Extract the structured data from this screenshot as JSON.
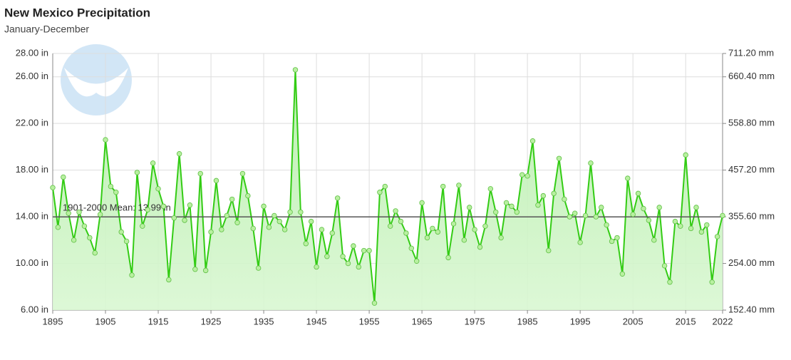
{
  "chart_data": {
    "type": "line",
    "title": "New Mexico Precipitation",
    "subtitle": "January-December",
    "x": [
      1895,
      1896,
      1897,
      1898,
      1899,
      1900,
      1901,
      1902,
      1903,
      1904,
      1905,
      1906,
      1907,
      1908,
      1909,
      1910,
      1911,
      1912,
      1913,
      1914,
      1915,
      1916,
      1917,
      1918,
      1919,
      1920,
      1921,
      1922,
      1923,
      1924,
      1925,
      1926,
      1927,
      1928,
      1929,
      1930,
      1931,
      1932,
      1933,
      1934,
      1935,
      1936,
      1937,
      1938,
      1939,
      1940,
      1941,
      1942,
      1943,
      1944,
      1945,
      1946,
      1947,
      1948,
      1949,
      1950,
      1951,
      1952,
      1953,
      1954,
      1955,
      1956,
      1957,
      1958,
      1959,
      1960,
      1961,
      1962,
      1963,
      1964,
      1965,
      1966,
      1967,
      1968,
      1969,
      1970,
      1971,
      1972,
      1973,
      1974,
      1975,
      1976,
      1977,
      1978,
      1979,
      1980,
      1981,
      1982,
      1983,
      1984,
      1985,
      1986,
      1987,
      1988,
      1989,
      1990,
      1991,
      1992,
      1993,
      1994,
      1995,
      1996,
      1997,
      1998,
      1999,
      2000,
      2001,
      2002,
      2003,
      2004,
      2005,
      2006,
      2007,
      2008,
      2009,
      2010,
      2011,
      2012,
      2013,
      2014,
      2015,
      2016,
      2017,
      2018,
      2019,
      2020,
      2021,
      2022
    ],
    "values": [
      16.5,
      13.1,
      17.4,
      14.3,
      12.0,
      14.4,
      13.2,
      12.2,
      10.9,
      14.2,
      20.6,
      16.6,
      16.1,
      12.7,
      11.9,
      9.0,
      17.8,
      13.2,
      14.6,
      18.6,
      16.4,
      14.9,
      8.6,
      13.9,
      19.4,
      13.7,
      15.0,
      9.5,
      17.7,
      9.4,
      12.7,
      17.1,
      12.9,
      14.1,
      15.5,
      13.5,
      17.7,
      15.8,
      13.0,
      9.6,
      14.9,
      13.1,
      14.1,
      13.6,
      12.9,
      14.4,
      26.6,
      14.4,
      11.7,
      13.6,
      9.7,
      12.9,
      10.6,
      12.6,
      15.6,
      10.6,
      10.0,
      11.5,
      9.7,
      11.1,
      11.1,
      6.6,
      16.1,
      16.6,
      13.2,
      14.5,
      13.6,
      12.6,
      11.3,
      10.2,
      15.2,
      12.2,
      13.0,
      12.7,
      16.6,
      10.5,
      13.4,
      16.7,
      12.0,
      14.8,
      12.9,
      11.4,
      13.2,
      16.4,
      14.4,
      12.2,
      15.2,
      14.9,
      14.4,
      17.6,
      17.5,
      20.5,
      15.0,
      15.8,
      11.1,
      16.0,
      19.0,
      15.5,
      14.0,
      14.3,
      11.8,
      14.1,
      18.6,
      14.0,
      14.8,
      13.3,
      11.9,
      12.2,
      9.1,
      17.3,
      14.2,
      16.0,
      14.7,
      13.7,
      12.0,
      14.8,
      9.8,
      8.4,
      13.6,
      13.2,
      19.3,
      13.0,
      14.8,
      12.7,
      13.3,
      8.4,
      12.3,
      14.1
    ],
    "color": "#33cc14",
    "xlim": [
      1895,
      2022
    ],
    "xticks": [
      1895,
      1905,
      1915,
      1925,
      1935,
      1945,
      1955,
      1965,
      1975,
      1985,
      1995,
      2005,
      2015,
      2022
    ],
    "ylim": [
      6,
      28
    ],
    "yticks": [
      {
        "value": 6,
        "label": "6.00 in"
      },
      {
        "value": 10,
        "label": "10.00 in"
      },
      {
        "value": 14,
        "label": "14.00 in"
      },
      {
        "value": 18,
        "label": "18.00 in"
      },
      {
        "value": 22,
        "label": "22.00 in"
      },
      {
        "value": 26,
        "label": "26.00 in"
      },
      {
        "value": 28,
        "label": "28.00 in"
      }
    ],
    "y2lim": [
      152.4,
      711.2
    ],
    "y2ticks": [
      {
        "value": 152.4,
        "label": "152.40 mm"
      },
      {
        "value": 254,
        "label": "254.00 mm"
      },
      {
        "value": 355.6,
        "label": "355.60 mm"
      },
      {
        "value": 457.2,
        "label": "457.20 mm"
      },
      {
        "value": 558.8,
        "label": "558.80 mm"
      },
      {
        "value": 660.4,
        "label": "660.40 mm"
      },
      {
        "value": 711.2,
        "label": "711.20 mm"
      }
    ],
    "mean": 13.99,
    "mean_label": "1901-2000 Mean: 13.99 in",
    "grid": true
  }
}
